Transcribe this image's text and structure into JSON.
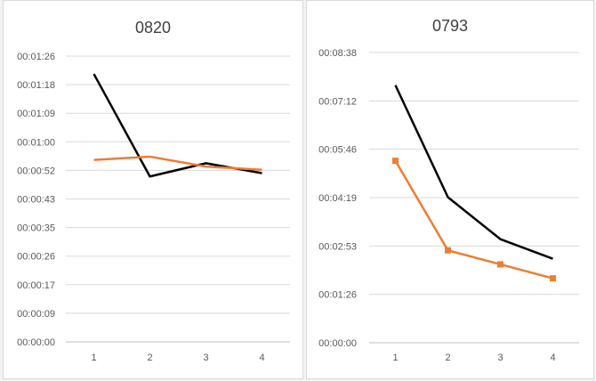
{
  "chart_data": [
    {
      "type": "line",
      "title": "0820",
      "x": [
        1,
        2,
        3,
        4
      ],
      "xlabel": "",
      "ylabel": "",
      "y_ticks": [
        "00:00:00",
        "00:00:09",
        "00:00:17",
        "00:00:26",
        "00:00:35",
        "00:00:43",
        "00:00:52",
        "00:01:00",
        "00:01:09",
        "00:01:18",
        "00:01:26"
      ],
      "ylim_seconds": [
        0,
        86.4
      ],
      "grid": true,
      "series": [
        {
          "color": "#000000",
          "marker": "none",
          "values_seconds": [
            81,
            50,
            54,
            51
          ]
        },
        {
          "color": "#ED7D31",
          "marker": "none",
          "values_seconds": [
            55,
            56,
            53,
            52
          ]
        }
      ]
    },
    {
      "type": "line",
      "title": "0793",
      "x": [
        1,
        2,
        3,
        4
      ],
      "xlabel": "",
      "ylabel": "",
      "y_ticks": [
        "00:00:00",
        "00:01:26",
        "00:02:53",
        "00:04:19",
        "00:05:46",
        "00:07:12",
        "00:08:38"
      ],
      "ylim_seconds": [
        0,
        518.4
      ],
      "grid": true,
      "series": [
        {
          "color": "#000000",
          "marker": "none",
          "values_seconds": [
            460,
            260,
            185,
            150
          ]
        },
        {
          "color": "#ED7D31",
          "marker": "square",
          "values_seconds": [
            325,
            165,
            140,
            115
          ]
        }
      ]
    }
  ]
}
